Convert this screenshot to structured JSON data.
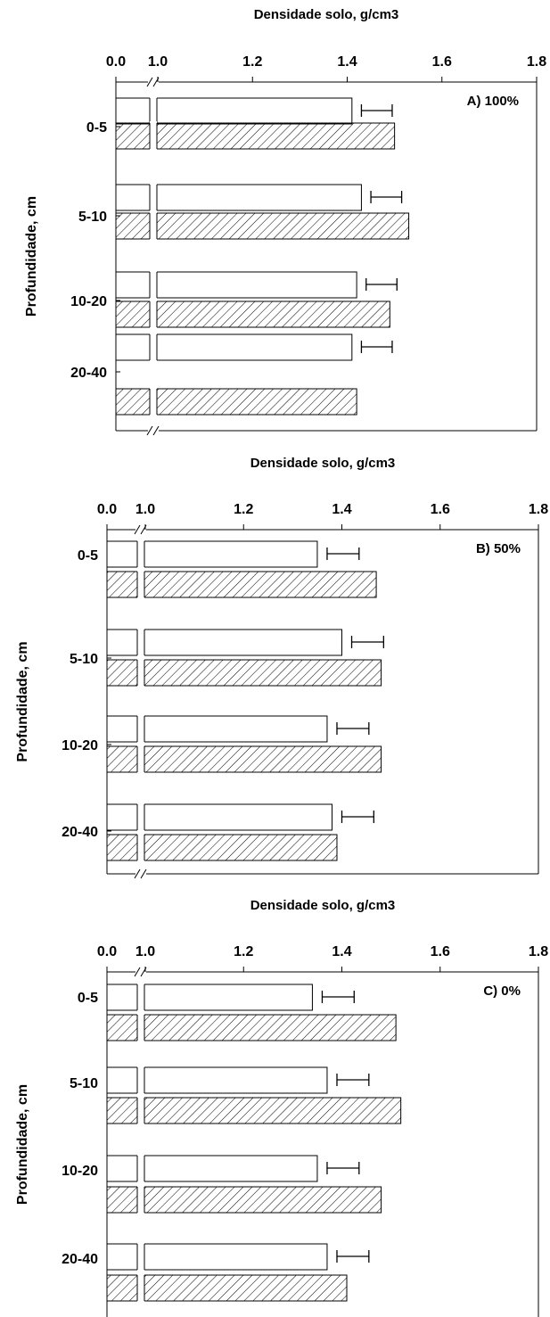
{
  "chart_data": [
    {
      "type": "bar",
      "orientation": "horizontal",
      "xlabel": "Densidade solo, g/cm3",
      "ylabel": "Profundidade, cm",
      "annotation": "A) 100%",
      "xticks": [
        "0.0",
        "1.0",
        "1.2",
        "1.4",
        "1.6",
        "1.8"
      ],
      "axis_break": "between 0.0 and 1.0",
      "xlim": [
        1.0,
        1.8
      ],
      "categories": [
        "0-5",
        "5-10",
        "10-20",
        "20-40"
      ],
      "series": [
        {
          "fill": "white",
          "values": [
            1.41,
            1.43,
            1.42,
            1.41
          ],
          "error": [
            0.02,
            0.02,
            0.02,
            0.02
          ]
        },
        {
          "fill": "hatched",
          "values": [
            1.5,
            1.53,
            1.49,
            1.42
          ]
        }
      ]
    },
    {
      "type": "bar",
      "orientation": "horizontal",
      "xlabel": "Densidade solo, g/cm3",
      "ylabel": "Profundidade, cm",
      "annotation": "B) 50%",
      "xticks": [
        "0.0",
        "1.0",
        "1.2",
        "1.4",
        "1.6",
        "1.8"
      ],
      "axis_break": "between 0.0 and 1.0",
      "xlim": [
        1.0,
        1.8
      ],
      "categories": [
        "0-5",
        "5-10",
        "10-20",
        "20-40"
      ],
      "series": [
        {
          "fill": "white",
          "values": [
            1.35,
            1.4,
            1.37,
            1.38
          ],
          "error": [
            0.02,
            0.02,
            0.02,
            0.02
          ]
        },
        {
          "fill": "hatched",
          "values": [
            1.47,
            1.48,
            1.48,
            1.39
          ]
        }
      ]
    },
    {
      "type": "bar",
      "orientation": "horizontal",
      "xlabel": "Densidade solo, g/cm3",
      "ylabel": "Profundidade, cm",
      "annotation": "C) 0%",
      "xticks": [
        "0.0",
        "1.0",
        "1.2",
        "1.4",
        "1.6",
        "1.8"
      ],
      "axis_break": "between 0.0 and 1.0",
      "xlim": [
        1.0,
        1.8
      ],
      "categories": [
        "0-5",
        "5-10",
        "10-20",
        "20-40"
      ],
      "series": [
        {
          "fill": "white",
          "values": [
            1.34,
            1.37,
            1.35,
            1.37
          ],
          "error": [
            0.02,
            0.02,
            0.02,
            0.02
          ]
        },
        {
          "fill": "hatched",
          "values": [
            1.51,
            1.52,
            1.48,
            1.41
          ]
        }
      ]
    }
  ]
}
